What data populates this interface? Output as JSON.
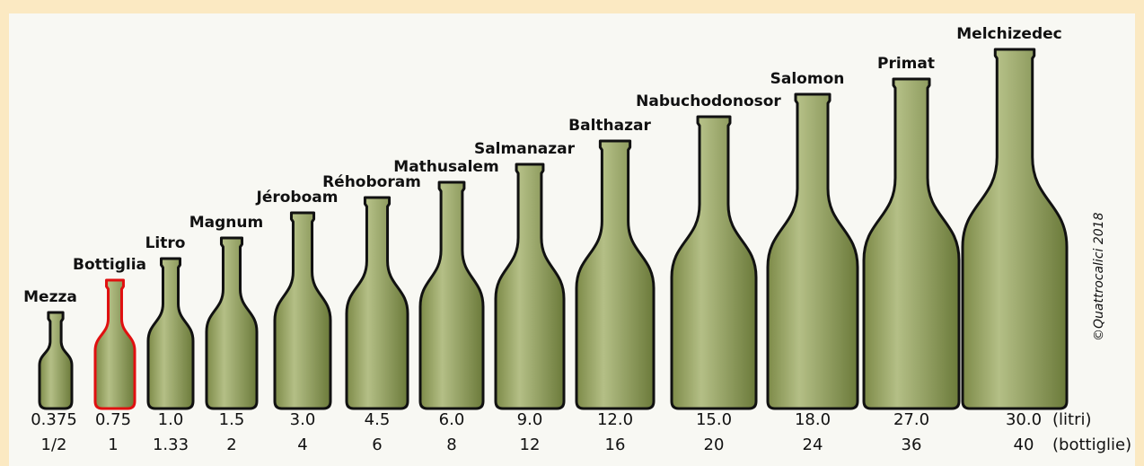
{
  "items": [
    {
      "name": "Mezza",
      "liters": "0.375",
      "bottles": "1/2"
    },
    {
      "name": "Bottiglia",
      "liters": "0.75",
      "bottles": "1"
    },
    {
      "name": "Litro",
      "liters": "1.0",
      "bottles": "1.33"
    },
    {
      "name": "Magnum",
      "liters": "1.5",
      "bottles": "2"
    },
    {
      "name": "Jéroboam",
      "liters": "3.0",
      "bottles": "4"
    },
    {
      "name": "Réhoboram",
      "liters": "4.5",
      "bottles": "6"
    },
    {
      "name": "Mathusalem",
      "liters": "6.0",
      "bottles": "8"
    },
    {
      "name": "Salmanazar",
      "liters": "9.0",
      "bottles": "12"
    },
    {
      "name": "Balthazar",
      "liters": "12.0",
      "bottles": "16"
    },
    {
      "name": "Nabuchodonosor",
      "liters": "15.0",
      "bottles": "20"
    },
    {
      "name": "Salomon",
      "liters": "18.0",
      "bottles": "24"
    },
    {
      "name": "Primat",
      "liters": "27.0",
      "bottles": "36"
    },
    {
      "name": "Melchizedec",
      "liters": "30.0",
      "bottles": "40"
    }
  ],
  "units": {
    "liters": "(litri)",
    "bottles": "(bottiglie)"
  },
  "copyright": "©Quattrocalici 2018"
}
